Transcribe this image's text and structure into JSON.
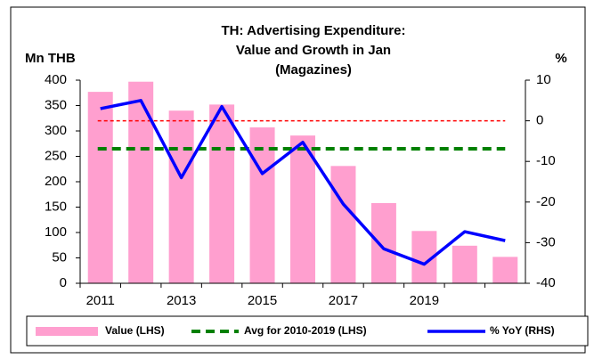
{
  "chart_data": {
    "type": "bar_line",
    "title": [
      "TH: Advertising Expenditure:",
      "Value and Growth in Jan",
      "(Magazines)"
    ],
    "y_label": "Mn THB",
    "y2_label": "%",
    "categories": [
      "2011",
      null,
      "2013",
      null,
      "2015",
      null,
      "2017",
      null,
      "2019",
      null,
      null
    ],
    "series": [
      {
        "name": "Value (LHS)",
        "type": "bar",
        "axis": "y",
        "color": "#ff9fcf",
        "values": [
          377,
          397,
          340,
          352,
          307,
          291,
          231,
          158,
          103,
          74,
          52
        ]
      },
      {
        "name": "% YoY (RHS)",
        "type": "line",
        "axis": "y2",
        "color": "#0000ff",
        "values": [
          3,
          5,
          -14,
          3.5,
          -13,
          -5.3,
          -20.5,
          -31.5,
          -35.3,
          -27.3,
          -29.5
        ]
      }
    ],
    "reference_lines": [
      {
        "name": "Avg for 2010-2019 (LHS)",
        "value": 265,
        "axis": "y",
        "color": "#008000"
      },
      {
        "value": 0,
        "axis": "y2",
        "color": "#ff0000"
      }
    ],
    "ylim": [
      0,
      400
    ],
    "yticks": [
      0,
      50,
      100,
      150,
      200,
      250,
      300,
      350,
      400
    ],
    "y2lim": [
      -40,
      10
    ],
    "y2ticks": [
      -40,
      -30,
      -20,
      -10,
      0,
      10
    ]
  }
}
